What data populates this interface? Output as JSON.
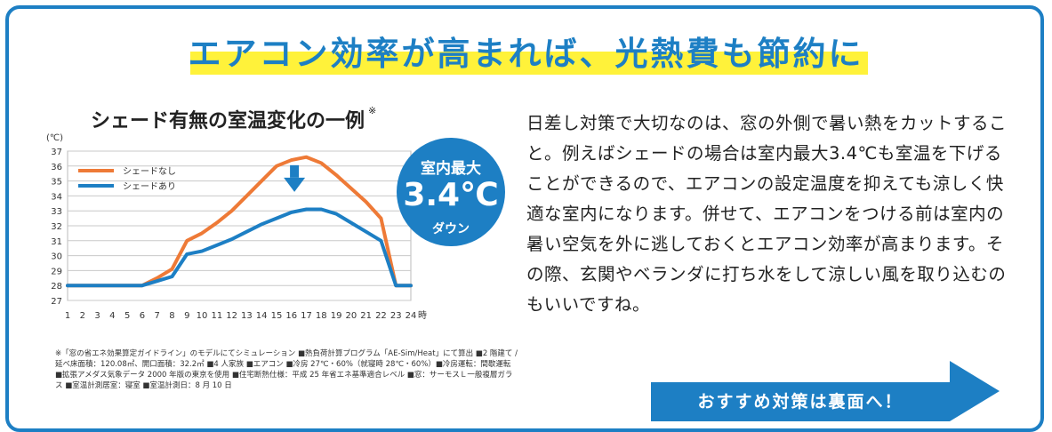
{
  "headline": "エアコン効率が高まれば、光熱費も節約に",
  "chart_title": "シェード有無の室温変化の一例",
  "chart_title_mark": "※",
  "badge": {
    "line1": "室内最大",
    "value": "3.4℃",
    "line3": "ダウン"
  },
  "footnote": "※「窓の省エネ効果算定ガイドライン」のモデルにてシミュレーション ■熱負荷計算プログラム「AE-Sim/Heat」にて算出 ■2 階建て / 延べ床面積：120.08㎡、開口面積：32.2㎡ ■4 人家族 ■エアコン ■冷房 27℃・60%（就寝時 28℃・60%）■冷房運転：間歇運転 ■拡張アメダス気象データ 2000 年版の東京を使用 ■住宅断熱仕様：平成 25 年省エネ基準適合レベル ■窓：サーモスＬ一般複層ガラス ■室温計測居室：寝室 ■室温計測日：8 月 10 日",
  "body_text": "日差し対策で大切なのは、窓の外側で暑い熱をカットすること。例えばシェードの場合は室内最大3.4℃も室温を下げることができるので、エアコンの設定温度を抑えても涼しく快適な室内になります。併せて、エアコンをつける前は室内の暑い空気を外に逃しておくとエアコン効率が高まります。その際、玄関やベランダに打ち水をして涼しい風を取り込むのもいいですね。",
  "cta": "おすすめ対策は裏面へ！",
  "colors": {
    "accent": "#1d7fc4",
    "orange": "#ee7a37",
    "highlight": "#fff23a"
  },
  "chart_data": {
    "type": "line",
    "title": "シェード有無の室温変化の一例",
    "ylabel": "(℃)",
    "xlabel": "時",
    "ylim": [
      27,
      37
    ],
    "yticks": [
      37,
      36,
      35,
      34,
      33,
      32,
      31,
      30,
      29,
      28,
      27
    ],
    "x": [
      1,
      2,
      3,
      4,
      5,
      6,
      7,
      8,
      9,
      10,
      11,
      12,
      13,
      14,
      15,
      16,
      17,
      18,
      19,
      20,
      21,
      22,
      23,
      24
    ],
    "grid": true,
    "legend": "top-left",
    "series": [
      {
        "name": "シェードなし",
        "color": "#ee7a37",
        "values": [
          28,
          28,
          28,
          28,
          28,
          28,
          28.5,
          29.1,
          31.0,
          31.5,
          32.2,
          33.0,
          34.0,
          35.0,
          36.0,
          36.4,
          36.6,
          36.2,
          35.4,
          34.5,
          33.6,
          32.5,
          28,
          28
        ]
      },
      {
        "name": "シェードあり",
        "color": "#1d7fc4",
        "values": [
          28,
          28,
          28,
          28,
          28,
          28,
          28.3,
          28.6,
          30.1,
          30.3,
          30.7,
          31.1,
          31.6,
          32.1,
          32.5,
          32.9,
          33.1,
          33.1,
          32.8,
          32.2,
          31.6,
          31.0,
          28,
          28
        ]
      }
    ]
  }
}
